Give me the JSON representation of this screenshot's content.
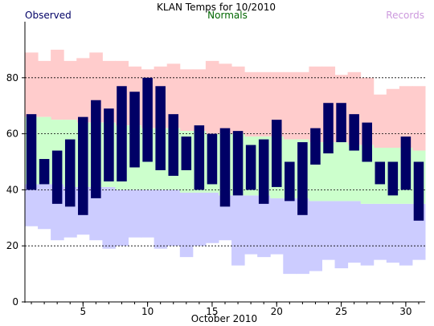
{
  "chart_data": {
    "type": "bar",
    "title": "KLAN Temps for 10/2010",
    "xlabel": "October 2010",
    "ylabel": "",
    "legend": [
      {
        "name": "Observed",
        "color": "#000066",
        "position": "top-left"
      },
      {
        "name": "Normals",
        "color": "#006600",
        "position": "top-center"
      },
      {
        "name": "Records",
        "color": "#cc99dd",
        "position": "top-right"
      }
    ],
    "x": [
      1,
      2,
      3,
      4,
      5,
      6,
      7,
      8,
      9,
      10,
      11,
      12,
      13,
      14,
      15,
      16,
      17,
      18,
      19,
      20,
      21,
      22,
      23,
      24,
      25,
      26,
      27,
      28,
      29,
      30,
      31
    ],
    "xlim": [
      0.5,
      31.5
    ],
    "ylim": [
      0,
      100
    ],
    "x_ticks": [
      5,
      10,
      15,
      20,
      25,
      30
    ],
    "y_ticks": [
      0,
      20,
      40,
      60,
      80
    ],
    "grid_y": [
      20,
      40,
      60,
      80
    ],
    "grid": true,
    "colors": {
      "observed": "#000066",
      "normal_band": "#ccffcc",
      "record_high_band": "#ffcccc",
      "record_low_band": "#ccccff",
      "normals_text": "#006600",
      "records_text": "#cc99dd"
    },
    "series": [
      {
        "name": "Observed",
        "high": [
          67,
          51,
          54,
          58,
          66,
          72,
          69,
          77,
          75,
          80,
          77,
          67,
          59,
          63,
          60,
          62,
          61,
          56,
          58,
          65,
          50,
          57,
          62,
          71,
          71,
          67,
          64,
          50,
          50,
          59,
          50
        ],
        "low": [
          40,
          42,
          35,
          34,
          31,
          37,
          43,
          43,
          48,
          50,
          47,
          45,
          47,
          40,
          42,
          34,
          38,
          40,
          35,
          41,
          36,
          31,
          49,
          53,
          57,
          54,
          50,
          42,
          38,
          40,
          29
        ]
      },
      {
        "name": "Normals",
        "high": [
          66,
          66,
          65,
          65,
          64,
          64,
          64,
          63,
          63,
          62,
          62,
          62,
          61,
          61,
          60,
          60,
          60,
          59,
          59,
          59,
          58,
          58,
          57,
          57,
          57,
          56,
          56,
          55,
          55,
          55,
          54
        ],
        "low": [
          42,
          42,
          42,
          41,
          41,
          41,
          41,
          40,
          40,
          40,
          40,
          40,
          39,
          39,
          39,
          38,
          38,
          38,
          38,
          37,
          37,
          37,
          36,
          36,
          36,
          36,
          35,
          35,
          35,
          35,
          35
        ]
      },
      {
        "name": "Records",
        "high": [
          89,
          86,
          90,
          86,
          87,
          89,
          86,
          86,
          84,
          83,
          84,
          85,
          83,
          83,
          86,
          85,
          84,
          82,
          82,
          82,
          82,
          82,
          84,
          84,
          81,
          82,
          80,
          74,
          76,
          77,
          77
        ],
        "low": [
          27,
          26,
          22,
          23,
          24,
          22,
          19,
          20,
          23,
          23,
          19,
          20,
          16,
          20,
          21,
          22,
          13,
          17,
          16,
          17,
          10,
          10,
          11,
          15,
          12,
          14,
          13,
          15,
          14,
          13,
          15
        ]
      }
    ]
  }
}
